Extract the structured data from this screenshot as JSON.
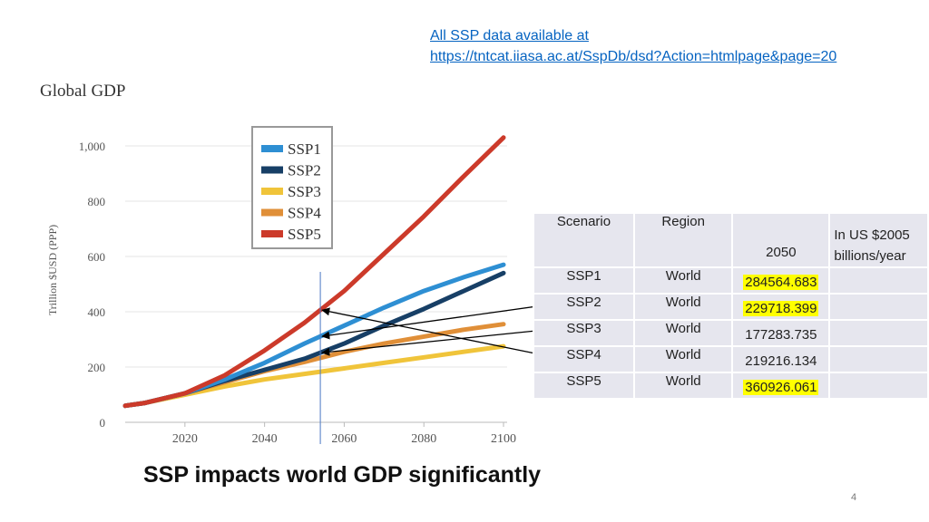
{
  "link": {
    "line1": "All SSP data available at",
    "line2": "https://tntcat.iiasa.ac.at/SspDb/dsd?Action=htmlpage&page=20"
  },
  "chart_data": {
    "type": "line",
    "title": "Global GDP",
    "ylabel": "Trillion $USD (PPP)",
    "xlabel": "",
    "xlim": [
      2005,
      2100
    ],
    "ylim": [
      0,
      1000
    ],
    "xticks": [
      "2020",
      "2040",
      "2060",
      "2080",
      "2100"
    ],
    "yticks": [
      "0",
      "200",
      "400",
      "600",
      "800",
      "1,000"
    ],
    "x": [
      2005,
      2010,
      2020,
      2030,
      2040,
      2050,
      2060,
      2070,
      2080,
      2090,
      2100
    ],
    "series": [
      {
        "name": "SSP1",
        "color": "#2e8fd3",
        "values": [
          60,
          70,
          105,
          155,
          215,
          285,
          350,
          415,
          475,
          525,
          570
        ]
      },
      {
        "name": "SSP2",
        "color": "#173f66",
        "values": [
          60,
          70,
          105,
          150,
          190,
          230,
          285,
          350,
          410,
          475,
          540
        ]
      },
      {
        "name": "SSP3",
        "color": "#f0c43a",
        "values": [
          60,
          70,
          100,
          130,
          155,
          175,
          195,
          215,
          235,
          255,
          275
        ]
      },
      {
        "name": "SSP4",
        "color": "#e08f38",
        "values": [
          60,
          70,
          105,
          145,
          185,
          218,
          255,
          285,
          310,
          335,
          355
        ]
      },
      {
        "name": "SSP5",
        "color": "#cc3a2a",
        "values": [
          60,
          70,
          105,
          170,
          260,
          360,
          475,
          610,
          745,
          890,
          1030
        ]
      }
    ],
    "marker_year": 2054,
    "legend": "top-left"
  },
  "table": {
    "headers": [
      "Scenario",
      "Region",
      "2050",
      "In US $2005 billions/year"
    ],
    "rows": [
      {
        "scenario": "SSP1",
        "region": "World",
        "value": "284564.683",
        "highlight": true
      },
      {
        "scenario": "SSP2",
        "region": "World",
        "value": "229718.399",
        "highlight": true
      },
      {
        "scenario": "SSP3",
        "region": "World",
        "value": "177283.735",
        "highlight": false
      },
      {
        "scenario": "SSP4",
        "region": "World",
        "value": "219216.134",
        "highlight": false
      },
      {
        "scenario": "SSP5",
        "region": "World",
        "value": "360926.061",
        "highlight": true
      }
    ]
  },
  "caption": "SSP impacts world GDP significantly",
  "page_number": "4"
}
